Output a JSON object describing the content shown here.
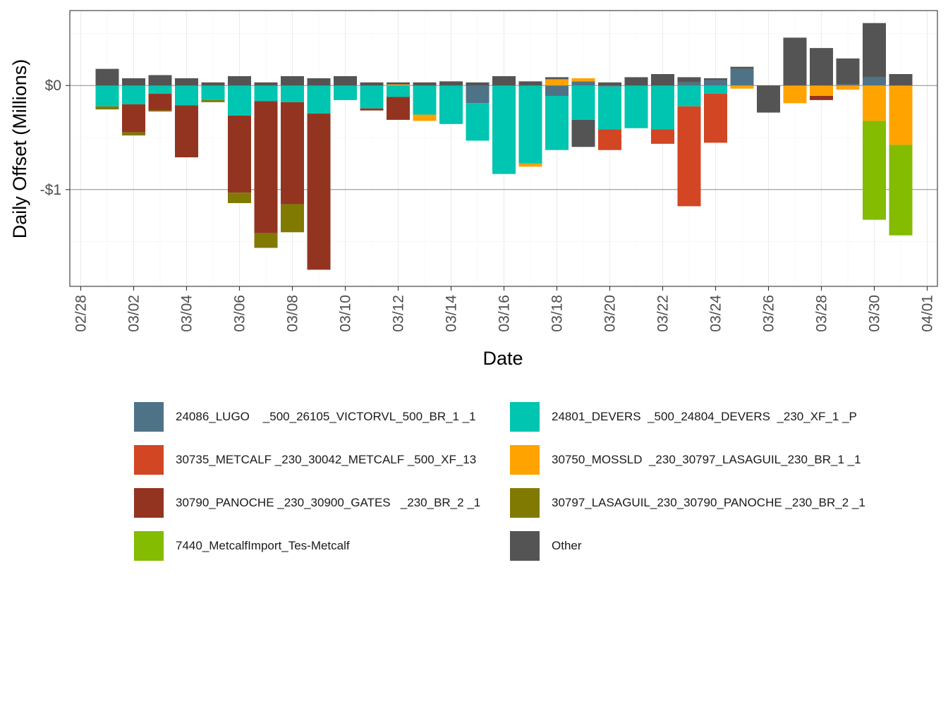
{
  "chart_data": {
    "type": "bar",
    "stacked": true,
    "title": "",
    "xlabel": "Date",
    "ylabel": "Daily Offset (Millions)",
    "ylim": [
      -1.93,
      0.72
    ],
    "y_ticks": [
      {
        "value": 0,
        "label": "$0"
      },
      {
        "value": -1,
        "label": "-$1"
      }
    ],
    "x_ticks": [
      "02/28",
      "03/02",
      "03/04",
      "03/06",
      "03/08",
      "03/10",
      "03/12",
      "03/14",
      "03/16",
      "03/18",
      "03/20",
      "03/22",
      "03/24",
      "03/26",
      "03/28",
      "03/30",
      "04/01"
    ],
    "x_tick_day_index": [
      0,
      2,
      4,
      6,
      8,
      10,
      12,
      14,
      16,
      18,
      20,
      22,
      24,
      26,
      28,
      30,
      32
    ],
    "legend_position": "bottom",
    "categories": [
      "03/01",
      "03/02",
      "03/03",
      "03/04",
      "03/05",
      "03/06",
      "03/07",
      "03/08",
      "03/09",
      "03/10",
      "03/11",
      "03/12",
      "03/13",
      "03/14",
      "03/15",
      "03/16",
      "03/17",
      "03/18",
      "03/19",
      "03/20",
      "03/21",
      "03/22",
      "03/23",
      "03/24",
      "03/25",
      "03/26",
      "03/27",
      "03/28",
      "03/29",
      "03/30",
      "03/31"
    ],
    "category_day_index": [
      1,
      2,
      3,
      4,
      5,
      6,
      7,
      8,
      9,
      10,
      11,
      12,
      13,
      14,
      15,
      16,
      17,
      18,
      19,
      20,
      21,
      22,
      23,
      24,
      25,
      26,
      27,
      28,
      29,
      30,
      31
    ],
    "series": [
      {
        "name": "24086_LUGO    _500_26105_VICTORVL_500_BR_1 _1",
        "color": "#4E7387",
        "values": [
          0,
          0,
          0,
          0,
          0,
          0,
          0,
          0,
          0,
          0,
          0,
          0,
          0,
          0,
          -0.17,
          0,
          0,
          -0.1,
          0.04,
          -0.01,
          0,
          0,
          0.03,
          0.05,
          0.16,
          0,
          0,
          0,
          0.01,
          0.08,
          0
        ]
      },
      {
        "name": "24801_DEVERS  _500_24804_DEVERS  _230_XF_1 _P",
        "color": "#00C5B0",
        "values": [
          -0.2,
          -0.18,
          -0.08,
          -0.19,
          -0.14,
          -0.29,
          -0.15,
          -0.16,
          -0.27,
          -0.14,
          -0.22,
          -0.11,
          -0.28,
          -0.37,
          -0.36,
          -0.85,
          -0.75,
          -0.52,
          -0.33,
          -0.41,
          -0.41,
          -0.42,
          -0.2,
          -0.08,
          0,
          0,
          0,
          0,
          0,
          0,
          0
        ]
      },
      {
        "name": "30735_METCALF _230_30042_METCALF _500_XF_13",
        "color": "#D24623",
        "values": [
          0,
          0,
          0,
          0,
          0,
          0,
          0,
          0,
          0,
          0,
          0,
          0,
          0,
          0,
          0,
          0,
          0,
          0,
          0,
          -0.2,
          0,
          -0.14,
          -0.96,
          -0.47,
          0,
          0,
          0,
          0,
          0,
          0,
          0
        ]
      },
      {
        "name": "30750_MOSSLD  _230_30797_LASAGUIL_230_BR_1 _1",
        "color": "#FFA300",
        "values": [
          0,
          0,
          0,
          0,
          0,
          0,
          0,
          0,
          0,
          0,
          0,
          0.01,
          -0.06,
          0,
          0,
          0,
          -0.03,
          0.06,
          0.03,
          0,
          0,
          0,
          0,
          0,
          -0.03,
          0,
          -0.17,
          -0.1,
          -0.04,
          -0.34,
          -0.57
        ]
      },
      {
        "name": "30790_PANOCHE _230_30900_GATES   _230_BR_2 _1",
        "color": "#933421",
        "values": [
          0,
          -0.27,
          -0.16,
          -0.5,
          0,
          -0.74,
          -1.27,
          -0.98,
          -1.5,
          0,
          -0.02,
          -0.22,
          0,
          0,
          0,
          0,
          0,
          0,
          0,
          0,
          0,
          0,
          0,
          0,
          0,
          0,
          0,
          -0.04,
          0,
          0,
          0
        ]
      },
      {
        "name": "30797_LASAGUIL_230_30790_PANOCHE _230_BR_2 _1",
        "color": "#807A03",
        "values": [
          -0.03,
          -0.03,
          -0.01,
          0,
          -0.02,
          -0.1,
          -0.14,
          -0.27,
          0,
          0,
          0,
          0,
          0,
          0,
          0,
          0,
          0,
          0,
          0,
          0,
          0,
          0,
          0,
          0,
          0,
          0,
          0,
          0,
          0,
          0,
          0
        ]
      },
      {
        "name": "7440_MetcalfImport_Tes-Metcalf",
        "color": "#83BC00",
        "values": [
          0,
          0,
          0,
          0,
          0,
          0,
          0,
          0,
          0,
          0,
          0,
          0,
          0,
          0,
          0,
          0,
          0,
          0,
          0,
          0,
          0,
          0,
          0,
          0,
          0,
          0,
          0,
          0,
          0,
          -0.95,
          -0.87
        ]
      },
      {
        "name": "Other",
        "color": "#545454",
        "values": [
          0.16,
          0.07,
          0.1,
          0.07,
          0.03,
          0.09,
          0.03,
          0.09,
          0.07,
          0.09,
          0.03,
          0.02,
          0.03,
          0.04,
          0.03,
          0.09,
          0.04,
          0.02,
          -0.26,
          0.03,
          0.08,
          0.11,
          0.05,
          0.02,
          0.02,
          -0.26,
          0.46,
          0.36,
          0.25,
          0.52,
          0.11
        ]
      }
    ]
  }
}
